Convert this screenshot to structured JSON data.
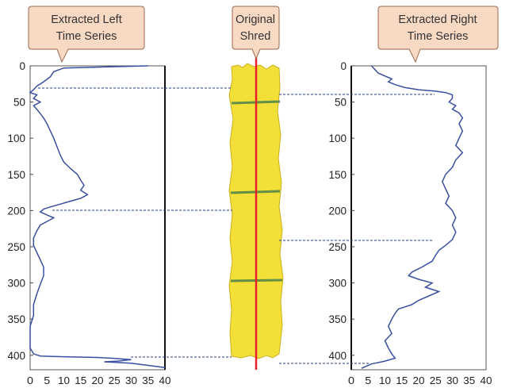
{
  "callouts": {
    "left": [
      "Extracted Left",
      "Time Series"
    ],
    "middle": [
      "Original",
      "Shred"
    ],
    "right": [
      "Extracted Right",
      "Time Series"
    ]
  },
  "colors": {
    "callout_fill": "#f8d9c4",
    "callout_stroke": "#9a6b4f",
    "series_line": "#3a4fa0",
    "dashed_guide": "#2b3a8a",
    "shred_fill": "#f2df38",
    "shred_edge": "#c9b020",
    "shred_rule": "#3d7d4a",
    "center_line": "#e8202a"
  },
  "icons": {
    "shred": "paper-shred-icon"
  },
  "chart_data": [
    {
      "type": "line",
      "title": "Extracted Left Time Series",
      "orientation": "y-down",
      "xlim": [
        0,
        40
      ],
      "ylim": [
        0,
        420
      ],
      "x_ticks": [
        "0",
        "5",
        "10",
        "15",
        "20",
        "25",
        "30",
        "35",
        "40"
      ],
      "y_ticks": [
        "0",
        "50",
        "100",
        "150",
        "200",
        "250",
        "300",
        "350",
        "400"
      ],
      "series": [
        {
          "points": [
            [
              35,
              0
            ],
            [
              10,
              3
            ],
            [
              7,
              8
            ],
            [
              6,
              15
            ],
            [
              4,
              22
            ],
            [
              2,
              28
            ],
            [
              1,
              33
            ],
            [
              0,
              37
            ],
            [
              2,
              40
            ],
            [
              1,
              45
            ],
            [
              3,
              50
            ],
            [
              1,
              55
            ],
            [
              2,
              60
            ],
            [
              3,
              66
            ],
            [
              4,
              72
            ],
            [
              5,
              80
            ],
            [
              6,
              90
            ],
            [
              7,
              100
            ],
            [
              8,
              112
            ],
            [
              9,
              124
            ],
            [
              10,
              133
            ],
            [
              12,
              142
            ],
            [
              14,
              150
            ],
            [
              15,
              158
            ],
            [
              16,
              165
            ],
            [
              15,
              172
            ],
            [
              17,
              178
            ],
            [
              15,
              183
            ],
            [
              12,
              187
            ],
            [
              9,
              191
            ],
            [
              6,
              195
            ],
            [
              4,
              198
            ],
            [
              3,
              202
            ],
            [
              5,
              206
            ],
            [
              7,
              210
            ],
            [
              5,
              215
            ],
            [
              3,
              220
            ],
            [
              2,
              228
            ],
            [
              1,
              238
            ],
            [
              1,
              248
            ],
            [
              2,
              258
            ],
            [
              3,
              268
            ],
            [
              4,
              278
            ],
            [
              4,
              290
            ],
            [
              3,
              302
            ],
            [
              2,
              315
            ],
            [
              1,
              330
            ],
            [
              1,
              345
            ],
            [
              0,
              360
            ],
            [
              0,
              375
            ],
            [
              0,
              390
            ],
            [
              1,
              398
            ],
            [
              3,
              401
            ],
            [
              10,
              402
            ],
            [
              20,
              403
            ],
            [
              24,
              404
            ],
            [
              30,
              406
            ],
            [
              26,
              408
            ],
            [
              22,
              409
            ],
            [
              30,
              411
            ],
            [
              35,
              414
            ],
            [
              40,
              417
            ]
          ]
        }
      ]
    },
    {
      "type": "line",
      "title": "Extracted Right Time Series",
      "orientation": "y-down",
      "xlim": [
        0,
        40
      ],
      "ylim": [
        0,
        420
      ],
      "x_ticks": [
        "0",
        "5",
        "10",
        "15",
        "20",
        "25",
        "30",
        "35",
        "40"
      ],
      "y_ticks": [
        "0",
        "50",
        "100",
        "150",
        "200",
        "250",
        "300",
        "350",
        "400"
      ],
      "series": [
        {
          "points": [
            [
              6,
              0
            ],
            [
              7,
              5
            ],
            [
              8,
              10
            ],
            [
              10,
              14
            ],
            [
              12,
              18
            ],
            [
              11,
              22
            ],
            [
              13,
              26
            ],
            [
              16,
              30
            ],
            [
              20,
              33
            ],
            [
              25,
              35
            ],
            [
              28,
              37
            ],
            [
              30,
              40
            ],
            [
              30,
              45
            ],
            [
              29,
              50
            ],
            [
              31,
              55
            ],
            [
              30,
              60
            ],
            [
              32,
              65
            ],
            [
              33,
              72
            ],
            [
              32,
              80
            ],
            [
              33,
              90
            ],
            [
              32,
              100
            ],
            [
              31,
              110
            ],
            [
              33,
              120
            ],
            [
              31,
              130
            ],
            [
              30,
              140
            ],
            [
              28,
              150
            ],
            [
              27,
              160
            ],
            [
              28,
              170
            ],
            [
              29,
              180
            ],
            [
              28,
              190
            ],
            [
              30,
              200
            ],
            [
              31,
              210
            ],
            [
              30,
              220
            ],
            [
              31,
              230
            ],
            [
              30,
              240
            ],
            [
              28,
              248
            ],
            [
              26,
              255
            ],
            [
              25,
              262
            ],
            [
              24,
              270
            ],
            [
              21,
              278
            ],
            [
              18,
              285
            ],
            [
              17,
              290
            ],
            [
              20,
              295
            ],
            [
              24,
              300
            ],
            [
              22,
              306
            ],
            [
              26,
              312
            ],
            [
              23,
              318
            ],
            [
              20,
              324
            ],
            [
              18,
              330
            ],
            [
              14,
              336
            ],
            [
              13,
              342
            ],
            [
              12,
              350
            ],
            [
              11,
              360
            ],
            [
              12,
              370
            ],
            [
              10,
              380
            ],
            [
              11,
              390
            ],
            [
              12,
              398
            ],
            [
              13,
              404
            ],
            [
              10,
              408
            ],
            [
              6,
              412
            ],
            [
              4,
              416
            ],
            [
              3,
              418
            ]
          ]
        }
      ]
    }
  ]
}
